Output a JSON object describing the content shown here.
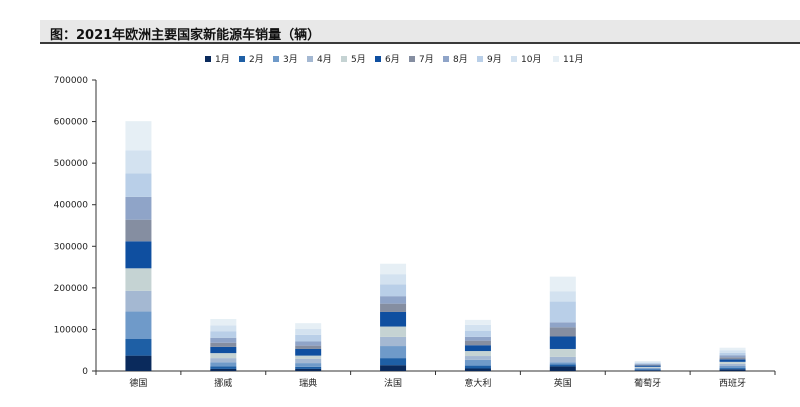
{
  "title": "图：2021年欧洲主要国家新能源车销量（辆）",
  "colors": [
    "#0a2a5c",
    "#1e5fa5",
    "#6f9ac9",
    "#a4b8d2",
    "#c5d3d3",
    "#0f4fa0",
    "#858ea1",
    "#8fa4c8",
    "#b9cfe8",
    "#d3e2f0",
    "#e6eff5"
  ],
  "chart_data": {
    "type": "bar",
    "stacked": true,
    "title": "图：2021年欧洲主要国家新能源车销量（辆）",
    "xlabel": "",
    "ylabel": "",
    "ylim": [
      0,
      700000
    ],
    "yticks": [
      0,
      100000,
      200000,
      300000,
      400000,
      500000,
      600000,
      700000
    ],
    "ytick_labels": [
      "0",
      "100000",
      "200000",
      "300000",
      "400000",
      "500000",
      "600000",
      "700000"
    ],
    "grid": false,
    "legend_position": "top",
    "categories": [
      "德国",
      "挪威",
      "瑞典",
      "法国",
      "意大利",
      "英国",
      "葡萄牙",
      "西班牙"
    ],
    "series": [
      {
        "name": "1月",
        "values": [
          37000,
          5000,
          5000,
          14000,
          6000,
          11000,
          2000,
          4000
        ]
      },
      {
        "name": "2月",
        "values": [
          40000,
          6000,
          5000,
          17000,
          7000,
          5000,
          1500,
          3000
        ]
      },
      {
        "name": "3月",
        "values": [
          66000,
          10000,
          9000,
          29000,
          14000,
          5000,
          2500,
          5000
        ]
      },
      {
        "name": "4月",
        "values": [
          50000,
          10000,
          10000,
          22000,
          9000,
          13000,
          2000,
          5000
        ]
      },
      {
        "name": "5月",
        "values": [
          54000,
          12000,
          8000,
          25000,
          12000,
          19000,
          2000,
          5000
        ]
      },
      {
        "name": "6月",
        "values": [
          65000,
          15000,
          16000,
          35000,
          14000,
          30000,
          3000,
          6000
        ]
      },
      {
        "name": "7月",
        "values": [
          52000,
          10000,
          8000,
          20000,
          11000,
          22000,
          2000,
          5000
        ]
      },
      {
        "name": "8月",
        "values": [
          55000,
          12000,
          10000,
          18000,
          9000,
          12000,
          2000,
          5000
        ]
      },
      {
        "name": "9月",
        "values": [
          56000,
          15000,
          16000,
          28000,
          15000,
          50000,
          2500,
          6000
        ]
      },
      {
        "name": "10月",
        "values": [
          56000,
          15000,
          14000,
          25000,
          14000,
          25000,
          2000,
          6000
        ]
      },
      {
        "name": "11月",
        "values": [
          70000,
          15000,
          14000,
          25000,
          12000,
          35000,
          2500,
          6000
        ]
      }
    ]
  }
}
